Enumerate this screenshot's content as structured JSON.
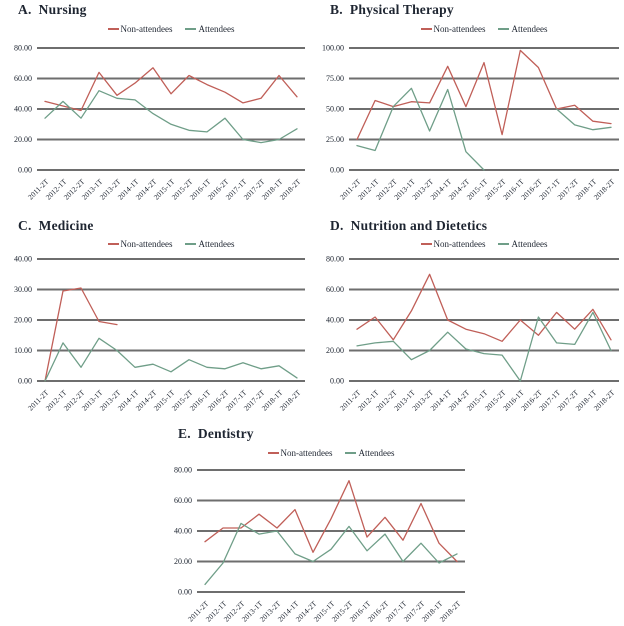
{
  "legend": {
    "non_attendees": "Non-attendees",
    "attendees": "Attendees"
  },
  "colors": {
    "non_attendees": "#c05f58",
    "attendees": "#6f9e88",
    "gridline": "#6e6e6e",
    "ink": "#1e2531"
  },
  "chart_data": [
    {
      "id": "a",
      "type": "line",
      "title": "A.  Nursing",
      "categories": [
        "2011-2T",
        "2012-1T",
        "2012-2T",
        "2013-1T",
        "2013-2T",
        "2014-1T",
        "2014-2T",
        "2015-1T",
        "2015-2T",
        "2016-1T",
        "2016-2T",
        "2017-1T",
        "2017-2T",
        "2018-1T",
        "2018-2T"
      ],
      "series": [
        {
          "name": "Non-attendees",
          "key": "non_attendees",
          "values": [
            45,
            42,
            39,
            64,
            49,
            57,
            67,
            50,
            62,
            56,
            51,
            44,
            47,
            62,
            48
          ]
        },
        {
          "name": "Attendees",
          "key": "attendees",
          "values": [
            34,
            45,
            34,
            52,
            47,
            46,
            37,
            30,
            26,
            25,
            34,
            20,
            18,
            20,
            27
          ]
        }
      ],
      "ylim": [
        0,
        80
      ],
      "yticks": [
        0,
        20,
        40,
        60,
        80
      ],
      "ytick_labels": [
        "0.00",
        "20.00",
        "40.00",
        "60.00",
        "80.00"
      ],
      "grid": "horizontal",
      "legend_position": "top"
    },
    {
      "id": "b",
      "type": "line",
      "title": "B.  Physical Therapy",
      "categories": [
        "2011-2T",
        "2012-1T",
        "2012-2T",
        "2013-1T",
        "2013-2T",
        "2014-1T",
        "2014-2T",
        "2015-1T",
        "2015-2T",
        "2016-1T",
        "2016-2T",
        "2017-1T",
        "2017-2T",
        "2018-1T",
        "2018-2T"
      ],
      "series": [
        {
          "name": "Non-attendees",
          "key": "non_attendees",
          "values": [
            25,
            57,
            52,
            56,
            55,
            85,
            52,
            88,
            29,
            98,
            84,
            50,
            53,
            40,
            38
          ]
        },
        {
          "name": "Attendees",
          "key": "attendees",
          "values": [
            20,
            16,
            52,
            67,
            32,
            66,
            15,
            0,
            null,
            null,
            null,
            50,
            37,
            33,
            35
          ]
        }
      ],
      "ylim": [
        0,
        100
      ],
      "yticks": [
        0,
        25,
        50,
        75,
        100
      ],
      "ytick_labels": [
        "0.00",
        "25.00",
        "50.00",
        "75.00",
        "100.00"
      ],
      "grid": "horizontal",
      "legend_position": "top"
    },
    {
      "id": "c",
      "type": "line",
      "title": "C.  Medicine",
      "categories": [
        "2011-2T",
        "2012-1T",
        "2012-2T",
        "2013-1T",
        "2013-2T",
        "2014-1T",
        "2014-2T",
        "2015-1T",
        "2015-2T",
        "2016-1T",
        "2016-2T",
        "2017-1T",
        "2017-2T",
        "2018-1T",
        "2018-2T"
      ],
      "series": [
        {
          "name": "Non-attendees",
          "key": "non_attendees",
          "values": [
            0,
            29.5,
            30.5,
            19.5,
            18.5,
            null,
            null,
            null,
            null,
            null,
            null,
            null,
            null,
            null,
            null
          ]
        },
        {
          "name": "Attendees",
          "key": "attendees",
          "values": [
            0,
            12.5,
            4.5,
            14,
            10,
            4.5,
            5.5,
            3,
            7,
            4.5,
            4,
            6,
            4,
            5,
            1
          ]
        }
      ],
      "ylim": [
        0,
        40
      ],
      "yticks": [
        0,
        10,
        20,
        30,
        40
      ],
      "ytick_labels": [
        "0.00",
        "10.00",
        "20.00",
        "30.00",
        "40.00"
      ],
      "grid": "horizontal",
      "legend_position": "top"
    },
    {
      "id": "d",
      "type": "line",
      "title": "D.  Nutrition and Dietetics",
      "categories": [
        "2011-2T",
        "2012-1T",
        "2012-2T",
        "2013-1T",
        "2013-2T",
        "2014-1T",
        "2014-2T",
        "2015-1T",
        "2015-2T",
        "2016-1T",
        "2016-2T",
        "2017-1T",
        "2017-2T",
        "2018-1T",
        "2018-2T"
      ],
      "series": [
        {
          "name": "Non-attendees",
          "key": "non_attendees",
          "values": [
            34,
            42,
            27,
            46,
            70,
            40,
            34,
            31,
            26,
            40,
            30,
            45,
            34,
            47,
            27
          ]
        },
        {
          "name": "Attendees",
          "key": "attendees",
          "values": [
            23,
            25,
            26,
            14,
            20,
            32,
            21,
            18,
            17,
            0,
            42,
            25,
            24,
            45,
            20
          ]
        }
      ],
      "ylim": [
        0,
        80
      ],
      "yticks": [
        0,
        20,
        40,
        60,
        80
      ],
      "ytick_labels": [
        "0.00",
        "20.00",
        "40.00",
        "60.00",
        "80.00"
      ],
      "grid": "horizontal",
      "legend_position": "top"
    },
    {
      "id": "e",
      "type": "line",
      "title": "E.  Dentistry",
      "categories": [
        "2011-2T",
        "2012-1T",
        "2012-2T",
        "2013-1T",
        "2013-2T",
        "2014-1T",
        "2014-2T",
        "2015-1T",
        "2015-2T",
        "2016-1T",
        "2016-2T",
        "2017-1T",
        "2017-2T",
        "2018-1T",
        "2018-2T"
      ],
      "series": [
        {
          "name": "Non-attendees",
          "key": "non_attendees",
          "values": [
            33,
            42,
            42,
            51,
            42,
            54,
            26,
            48,
            73,
            36,
            49,
            34,
            58,
            32,
            20
          ]
        },
        {
          "name": "Attendees",
          "key": "attendees",
          "values": [
            5,
            19,
            45,
            38,
            40,
            25,
            20,
            28,
            43,
            27,
            38,
            20,
            32,
            19,
            25
          ]
        }
      ],
      "ylim": [
        0,
        80
      ],
      "yticks": [
        0,
        20,
        40,
        60,
        80
      ],
      "ytick_labels": [
        "0.00",
        "20.00",
        "40.00",
        "60.00",
        "80.00"
      ],
      "grid": "horizontal",
      "legend_position": "top"
    }
  ]
}
